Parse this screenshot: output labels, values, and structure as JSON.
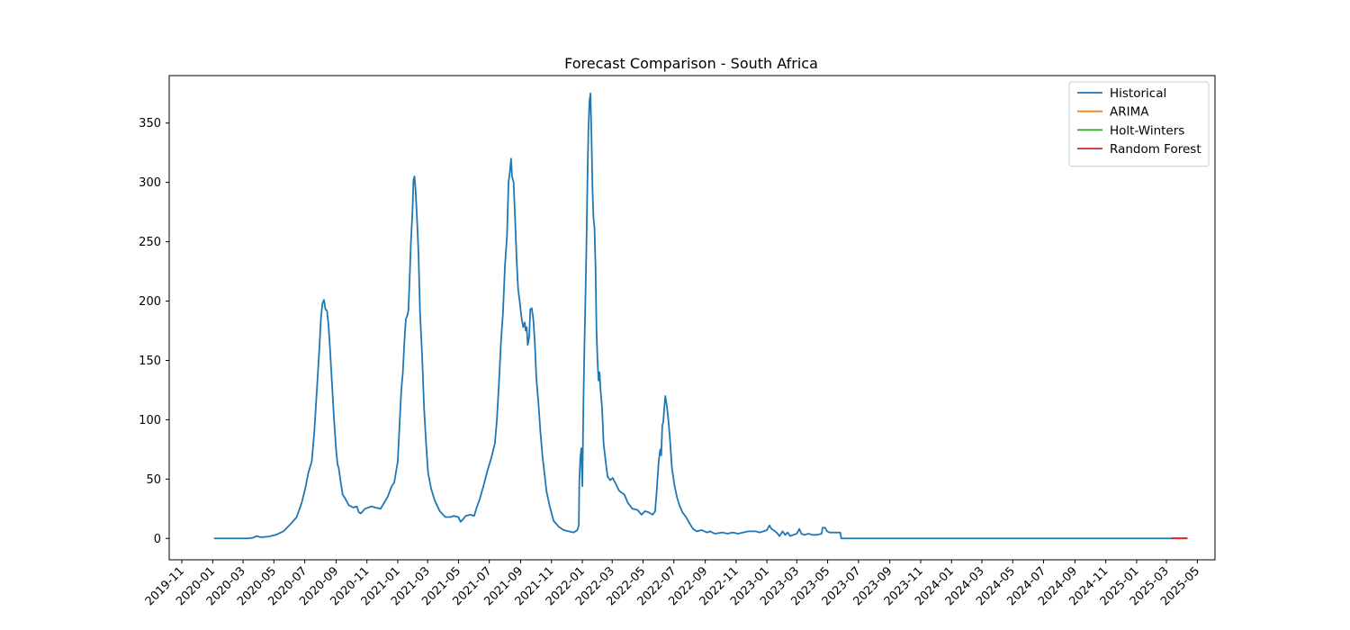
{
  "chart_data": {
    "type": "line",
    "title": "Forecast Comparison - South Africa",
    "xlabel": "",
    "ylabel": "",
    "xlim": [
      "2019-10-07",
      "2025-06-05"
    ],
    "ylim": [
      -18,
      390
    ],
    "y_ticks": [
      0,
      50,
      100,
      150,
      200,
      250,
      300,
      350
    ],
    "x_ticks": [
      "2019-11",
      "2020-01",
      "2020-03",
      "2020-05",
      "2020-07",
      "2020-09",
      "2020-11",
      "2021-01",
      "2021-03",
      "2021-05",
      "2021-07",
      "2021-09",
      "2021-11",
      "2022-01",
      "2022-03",
      "2022-05",
      "2022-07",
      "2022-09",
      "2022-11",
      "2023-01",
      "2023-03",
      "2023-05",
      "2023-07",
      "2023-09",
      "2023-11",
      "2024-01",
      "2024-03",
      "2024-05",
      "2024-07",
      "2024-09",
      "2024-11",
      "2025-01",
      "2025-03",
      "2025-05"
    ],
    "legend_position": "top-right",
    "grid": false,
    "series": [
      {
        "name": "Historical",
        "color": "#1f77b4",
        "points": [
          [
            "2020-01-05",
            0
          ],
          [
            "2020-02-15",
            0
          ],
          [
            "2020-03-10",
            0
          ],
          [
            "2020-03-20",
            0.5
          ],
          [
            "2020-03-28",
            2
          ],
          [
            "2020-04-05",
            1
          ],
          [
            "2020-04-20",
            1.5
          ],
          [
            "2020-05-05",
            3
          ],
          [
            "2020-05-20",
            6
          ],
          [
            "2020-06-05",
            13
          ],
          [
            "2020-06-15",
            18
          ],
          [
            "2020-06-25",
            30
          ],
          [
            "2020-07-02",
            42
          ],
          [
            "2020-07-08",
            55
          ],
          [
            "2020-07-15",
            65
          ],
          [
            "2020-07-20",
            90
          ],
          [
            "2020-07-25",
            125
          ],
          [
            "2020-07-30",
            160
          ],
          [
            "2020-08-02",
            185
          ],
          [
            "2020-08-05",
            198
          ],
          [
            "2020-08-08",
            201
          ],
          [
            "2020-08-11",
            193
          ],
          [
            "2020-08-14",
            192
          ],
          [
            "2020-08-17",
            180
          ],
          [
            "2020-08-20",
            160
          ],
          [
            "2020-08-24",
            130
          ],
          [
            "2020-08-28",
            100
          ],
          [
            "2020-09-01",
            75
          ],
          [
            "2020-09-04",
            62
          ],
          [
            "2020-09-06",
            60
          ],
          [
            "2020-09-10",
            48
          ],
          [
            "2020-09-14",
            37
          ],
          [
            "2020-09-20",
            33
          ],
          [
            "2020-09-26",
            28
          ],
          [
            "2020-10-05",
            26
          ],
          [
            "2020-10-12",
            27
          ],
          [
            "2020-10-16",
            22
          ],
          [
            "2020-10-20",
            21
          ],
          [
            "2020-10-28",
            25
          ],
          [
            "2020-11-10",
            27
          ],
          [
            "2020-11-18",
            26
          ],
          [
            "2020-11-28",
            25
          ],
          [
            "2020-12-05",
            30
          ],
          [
            "2020-12-12",
            35
          ],
          [
            "2020-12-20",
            44
          ],
          [
            "2020-12-25",
            47
          ],
          [
            "2021-01-01",
            65
          ],
          [
            "2021-01-05",
            100
          ],
          [
            "2021-01-08",
            125
          ],
          [
            "2021-01-11",
            140
          ],
          [
            "2021-01-14",
            165
          ],
          [
            "2021-01-17",
            185
          ],
          [
            "2021-01-20",
            188
          ],
          [
            "2021-01-22",
            192
          ],
          [
            "2021-01-25",
            225
          ],
          [
            "2021-01-27",
            250
          ],
          [
            "2021-01-30",
            275
          ],
          [
            "2021-02-01",
            302
          ],
          [
            "2021-02-03",
            305
          ],
          [
            "2021-02-05",
            295
          ],
          [
            "2021-02-08",
            270
          ],
          [
            "2021-02-11",
            240
          ],
          [
            "2021-02-14",
            190
          ],
          [
            "2021-02-18",
            155
          ],
          [
            "2021-02-22",
            110
          ],
          [
            "2021-02-26",
            80
          ],
          [
            "2021-03-02",
            55
          ],
          [
            "2021-03-08",
            42
          ],
          [
            "2021-03-15",
            32
          ],
          [
            "2021-03-25",
            23
          ],
          [
            "2021-04-05",
            18
          ],
          [
            "2021-04-15",
            18
          ],
          [
            "2021-04-22",
            19
          ],
          [
            "2021-05-01",
            18
          ],
          [
            "2021-05-05",
            14
          ],
          [
            "2021-05-10",
            16
          ],
          [
            "2021-05-15",
            19
          ],
          [
            "2021-05-25",
            20
          ],
          [
            "2021-06-01",
            19
          ],
          [
            "2021-06-06",
            26
          ],
          [
            "2021-06-12",
            33
          ],
          [
            "2021-06-20",
            45
          ],
          [
            "2021-06-28",
            58
          ],
          [
            "2021-07-05",
            68
          ],
          [
            "2021-07-12",
            80
          ],
          [
            "2021-07-16",
            100
          ],
          [
            "2021-07-20",
            130
          ],
          [
            "2021-07-24",
            165
          ],
          [
            "2021-07-28",
            190
          ],
          [
            "2021-08-01",
            230
          ],
          [
            "2021-08-05",
            255
          ],
          [
            "2021-08-08",
            300
          ],
          [
            "2021-08-11",
            310
          ],
          [
            "2021-08-13",
            320
          ],
          [
            "2021-08-15",
            305
          ],
          [
            "2021-08-18",
            300
          ],
          [
            "2021-08-21",
            270
          ],
          [
            "2021-08-24",
            235
          ],
          [
            "2021-08-27",
            210
          ],
          [
            "2021-08-30",
            200
          ],
          [
            "2021-09-03",
            185
          ],
          [
            "2021-09-06",
            178
          ],
          [
            "2021-09-09",
            182
          ],
          [
            "2021-09-11",
            175
          ],
          [
            "2021-09-13",
            178
          ],
          [
            "2021-09-15",
            163
          ],
          [
            "2021-09-18",
            170
          ],
          [
            "2021-09-20",
            193
          ],
          [
            "2021-09-23",
            194
          ],
          [
            "2021-09-26",
            185
          ],
          [
            "2021-09-29",
            165
          ],
          [
            "2021-10-02",
            135
          ],
          [
            "2021-10-06",
            115
          ],
          [
            "2021-10-10",
            90
          ],
          [
            "2021-10-14",
            70
          ],
          [
            "2021-10-18",
            55
          ],
          [
            "2021-10-22",
            40
          ],
          [
            "2021-10-28",
            28
          ],
          [
            "2021-11-05",
            15
          ],
          [
            "2021-11-15",
            10
          ],
          [
            "2021-11-25",
            7
          ],
          [
            "2021-12-05",
            6
          ],
          [
            "2021-12-15",
            5
          ],
          [
            "2021-12-22",
            7
          ],
          [
            "2021-12-25",
            11
          ],
          [
            "2021-12-26",
            48
          ],
          [
            "2021-12-28",
            68
          ],
          [
            "2021-12-30",
            76
          ],
          [
            "2022-01-01",
            44
          ],
          [
            "2022-01-03",
            110
          ],
          [
            "2022-01-05",
            160
          ],
          [
            "2022-01-07",
            200
          ],
          [
            "2022-01-09",
            245
          ],
          [
            "2022-01-11",
            300
          ],
          [
            "2022-01-13",
            345
          ],
          [
            "2022-01-15",
            368
          ],
          [
            "2022-01-17",
            375
          ],
          [
            "2022-01-19",
            340
          ],
          [
            "2022-01-21",
            295
          ],
          [
            "2022-01-23",
            270
          ],
          [
            "2022-01-25",
            262
          ],
          [
            "2022-01-27",
            230
          ],
          [
            "2022-01-29",
            175
          ],
          [
            "2022-01-31",
            150
          ],
          [
            "2022-02-02",
            133
          ],
          [
            "2022-02-04",
            140
          ],
          [
            "2022-02-06",
            125
          ],
          [
            "2022-02-09",
            110
          ],
          [
            "2022-02-12",
            80
          ],
          [
            "2022-02-16",
            65
          ],
          [
            "2022-02-20",
            52
          ],
          [
            "2022-02-25",
            49
          ],
          [
            "2022-03-02",
            51
          ],
          [
            "2022-03-08",
            46
          ],
          [
            "2022-03-15",
            40
          ],
          [
            "2022-03-25",
            37
          ],
          [
            "2022-04-01",
            30
          ],
          [
            "2022-04-10",
            25
          ],
          [
            "2022-04-20",
            24
          ],
          [
            "2022-04-28",
            20
          ],
          [
            "2022-05-05",
            23
          ],
          [
            "2022-05-12",
            22
          ],
          [
            "2022-05-20",
            20
          ],
          [
            "2022-05-25",
            23
          ],
          [
            "2022-05-28",
            40
          ],
          [
            "2022-06-01",
            65
          ],
          [
            "2022-06-04",
            75
          ],
          [
            "2022-06-06",
            70
          ],
          [
            "2022-06-08",
            95
          ],
          [
            "2022-06-10",
            98
          ],
          [
            "2022-06-12",
            110
          ],
          [
            "2022-06-14",
            120
          ],
          [
            "2022-06-17",
            112
          ],
          [
            "2022-06-20",
            100
          ],
          [
            "2022-06-23",
            85
          ],
          [
            "2022-06-27",
            60
          ],
          [
            "2022-07-02",
            45
          ],
          [
            "2022-07-07",
            35
          ],
          [
            "2022-07-12",
            28
          ],
          [
            "2022-07-18",
            22
          ],
          [
            "2022-07-25",
            18
          ],
          [
            "2022-08-02",
            12
          ],
          [
            "2022-08-08",
            8
          ],
          [
            "2022-08-15",
            6
          ],
          [
            "2022-08-25",
            7
          ],
          [
            "2022-09-05",
            5
          ],
          [
            "2022-09-10",
            6
          ],
          [
            "2022-09-20",
            4
          ],
          [
            "2022-10-05",
            5
          ],
          [
            "2022-10-15",
            4
          ],
          [
            "2022-10-25",
            5
          ],
          [
            "2022-11-05",
            4
          ],
          [
            "2022-11-15",
            5
          ],
          [
            "2022-11-25",
            6
          ],
          [
            "2022-12-10",
            6
          ],
          [
            "2022-12-18",
            5
          ],
          [
            "2022-12-25",
            6
          ],
          [
            "2023-01-01",
            7
          ],
          [
            "2023-01-06",
            11
          ],
          [
            "2023-01-10",
            8
          ],
          [
            "2023-01-14",
            7
          ],
          [
            "2023-01-20",
            5
          ],
          [
            "2023-01-26",
            2
          ],
          [
            "2023-02-01",
            6
          ],
          [
            "2023-02-06",
            3
          ],
          [
            "2023-02-11",
            5
          ],
          [
            "2023-02-16",
            2
          ],
          [
            "2023-02-22",
            3
          ],
          [
            "2023-03-01",
            4
          ],
          [
            "2023-03-06",
            8
          ],
          [
            "2023-03-10",
            4
          ],
          [
            "2023-03-16",
            3
          ],
          [
            "2023-03-24",
            4
          ],
          [
            "2023-04-01",
            3
          ],
          [
            "2023-04-10",
            3
          ],
          [
            "2023-04-19",
            4
          ],
          [
            "2023-04-21",
            9
          ],
          [
            "2023-04-26",
            9
          ],
          [
            "2023-04-30",
            6
          ],
          [
            "2023-05-05",
            5
          ],
          [
            "2023-05-12",
            5
          ],
          [
            "2023-05-26",
            5
          ],
          [
            "2023-05-28",
            0
          ],
          [
            "2023-09-01",
            0
          ],
          [
            "2024-01-01",
            0
          ],
          [
            "2024-06-01",
            0
          ],
          [
            "2024-12-01",
            0
          ],
          [
            "2025-03-11",
            0
          ]
        ]
      },
      {
        "name": "ARIMA",
        "color": "#ff7f0e",
        "points": [
          [
            "2025-03-12",
            0.2
          ],
          [
            "2025-04-10",
            0.2
          ]
        ]
      },
      {
        "name": "Holt-Winters",
        "color": "#2ca02c",
        "points": [
          [
            "2025-03-12",
            0.1
          ],
          [
            "2025-04-10",
            0.1
          ]
        ]
      },
      {
        "name": "Random Forest",
        "color": "#d62728",
        "points": [
          [
            "2025-03-12",
            0
          ],
          [
            "2025-04-10",
            0
          ]
        ]
      }
    ]
  }
}
